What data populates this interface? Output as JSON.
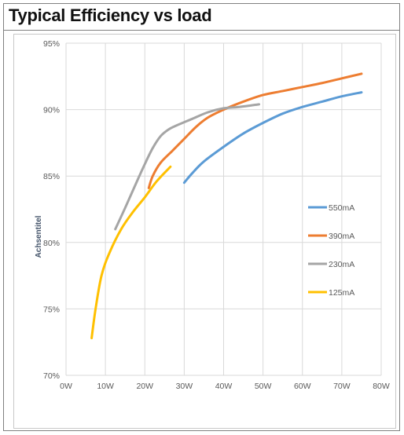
{
  "title": "Typical Efficiency vs load",
  "chart_data": {
    "type": "line",
    "title": "Typical Efficiency vs load",
    "xlabel": "",
    "ylabel": "Achsentitel",
    "xlim": [
      0,
      80
    ],
    "ylim": [
      70,
      95
    ],
    "x_ticks": [
      "0W",
      "10W",
      "20W",
      "30W",
      "40W",
      "50W",
      "60W",
      "70W",
      "80W"
    ],
    "y_ticks": [
      "70%",
      "75%",
      "80%",
      "85%",
      "90%",
      "95%"
    ],
    "x_tick_values": [
      0,
      10,
      20,
      30,
      40,
      50,
      60,
      70,
      80
    ],
    "y_tick_values": [
      70,
      75,
      80,
      85,
      90,
      95
    ],
    "grid": true,
    "legend_position": "right",
    "series": [
      {
        "name": "550mA",
        "color": "#5b9bd5",
        "points": [
          [
            30,
            84.5
          ],
          [
            32,
            85.2
          ],
          [
            35,
            86.1
          ],
          [
            40,
            87.2
          ],
          [
            45,
            88.2
          ],
          [
            50,
            89.0
          ],
          [
            55,
            89.7
          ],
          [
            60,
            90.2
          ],
          [
            65,
            90.6
          ],
          [
            70,
            91.0
          ],
          [
            75,
            91.3
          ]
        ]
      },
      {
        "name": "390mA",
        "color": "#ed7d31",
        "points": [
          [
            21,
            84.1
          ],
          [
            22,
            85.0
          ],
          [
            24,
            86.0
          ],
          [
            27,
            86.9
          ],
          [
            30,
            87.8
          ],
          [
            33,
            88.7
          ],
          [
            36,
            89.4
          ],
          [
            40,
            90.0
          ],
          [
            45,
            90.6
          ],
          [
            50,
            91.1
          ],
          [
            55,
            91.4
          ],
          [
            60,
            91.7
          ],
          [
            65,
            92.0
          ],
          [
            70,
            92.35
          ],
          [
            75,
            92.7
          ]
        ]
      },
      {
        "name": "230mA",
        "color": "#a5a5a5",
        "points": [
          [
            12.5,
            81.0
          ],
          [
            15,
            82.6
          ],
          [
            18,
            84.6
          ],
          [
            20,
            85.9
          ],
          [
            22,
            87.1
          ],
          [
            24,
            88.0
          ],
          [
            26,
            88.5
          ],
          [
            28,
            88.8
          ],
          [
            32,
            89.3
          ],
          [
            36,
            89.8
          ],
          [
            40,
            90.1
          ],
          [
            44,
            90.2
          ],
          [
            49,
            90.4
          ]
        ]
      },
      {
        "name": "125mA",
        "color": "#ffc000",
        "points": [
          [
            6.5,
            72.8
          ],
          [
            7.5,
            75.0
          ],
          [
            9,
            77.5
          ],
          [
            11,
            79.2
          ],
          [
            14,
            81.0
          ],
          [
            17,
            82.3
          ],
          [
            20,
            83.4
          ],
          [
            23,
            84.6
          ],
          [
            26.5,
            85.7
          ]
        ]
      }
    ]
  }
}
